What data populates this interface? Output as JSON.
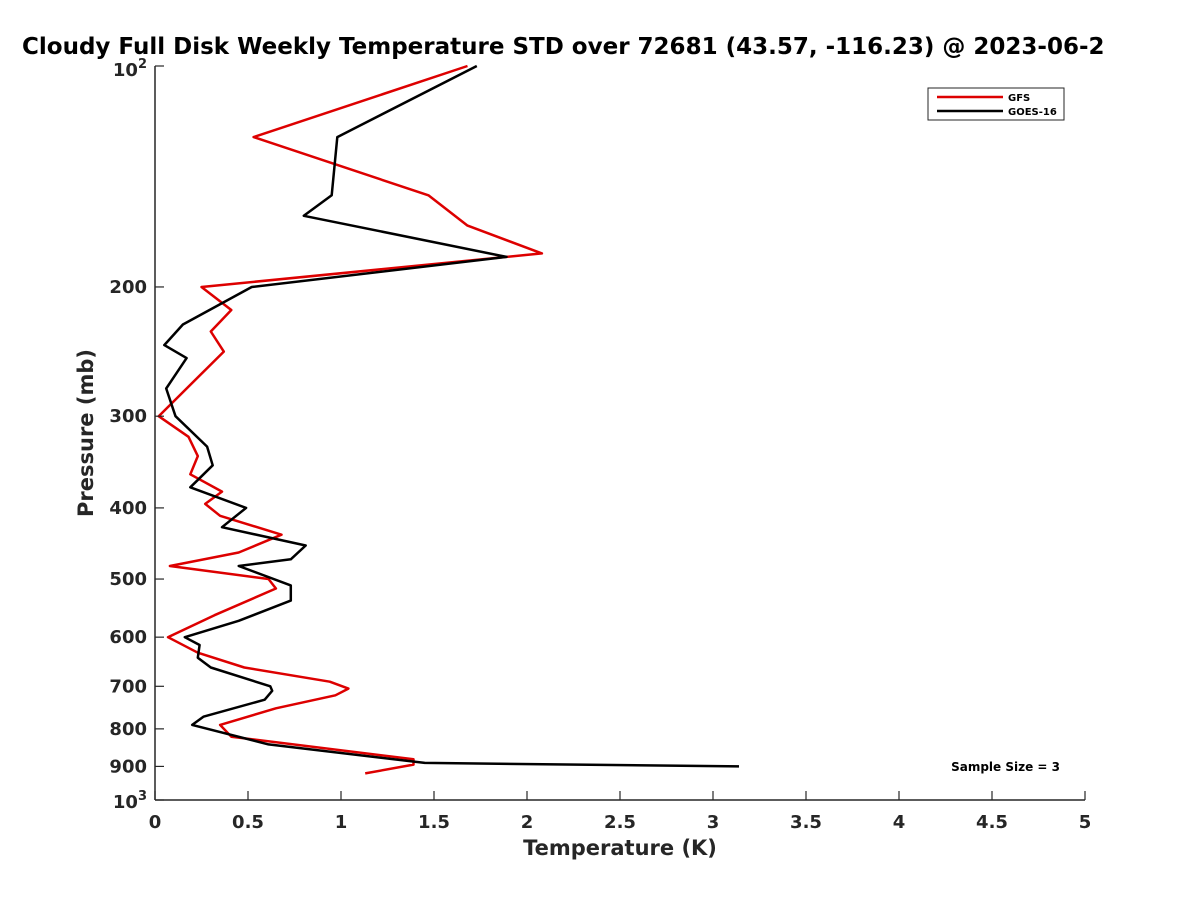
{
  "chart_data": {
    "type": "line",
    "title": "Cloudy Full Disk Weekly Temperature STD over 72681 (43.57, -116.23) @ 2023-06-2",
    "xlabel": "Temperature (K)",
    "ylabel": "Pressure (mb)",
    "xlim": [
      0,
      5
    ],
    "ylim": [
      100,
      1000
    ],
    "y_scale": "log",
    "y_reversed": true,
    "x_ticks": [
      0,
      0.5,
      1,
      1.5,
      2,
      2.5,
      3,
      3.5,
      4,
      4.5,
      5
    ],
    "x_tick_labels": [
      "0",
      "0.5",
      "1",
      "1.5",
      "2",
      "2.5",
      "3",
      "3.5",
      "4",
      "4.5",
      "5"
    ],
    "y_ticks": [
      200,
      300,
      400,
      500,
      600,
      700,
      800,
      900
    ],
    "y_tick_labels": [
      "200",
      "300",
      "400",
      "500",
      "600",
      "700",
      "800",
      "900"
    ],
    "y_tick_top": {
      "value": 100,
      "base": "10",
      "exponent": "2"
    },
    "y_tick_bottom": {
      "value": 1000,
      "base": "10",
      "exponent": "3"
    },
    "grid": false,
    "legend_position": "top-right",
    "annotation": "Sample Size = 3",
    "series": [
      {
        "name": "GFS",
        "color": "#dd0000",
        "points": [
          [
            1.68,
            100
          ],
          [
            0.53,
            125
          ],
          [
            1.47,
            150
          ],
          [
            1.68,
            165
          ],
          [
            2.08,
            180
          ],
          [
            0.25,
            200
          ],
          [
            0.41,
            215
          ],
          [
            0.3,
            230
          ],
          [
            0.37,
            245
          ],
          [
            0.02,
            300
          ],
          [
            0.18,
            320
          ],
          [
            0.23,
            340
          ],
          [
            0.19,
            360
          ],
          [
            0.36,
            380
          ],
          [
            0.27,
            395
          ],
          [
            0.35,
            410
          ],
          [
            0.68,
            435
          ],
          [
            0.45,
            460
          ],
          [
            0.08,
            480
          ],
          [
            0.61,
            500
          ],
          [
            0.65,
            515
          ],
          [
            0.32,
            560
          ],
          [
            0.07,
            600
          ],
          [
            0.23,
            630
          ],
          [
            0.48,
            660
          ],
          [
            0.94,
            690
          ],
          [
            1.04,
            705
          ],
          [
            0.97,
            720
          ],
          [
            0.65,
            750
          ],
          [
            0.35,
            790
          ],
          [
            0.41,
            820
          ],
          [
            1.39,
            880
          ],
          [
            1.39,
            895
          ],
          [
            1.13,
            920
          ]
        ]
      },
      {
        "name": "GOES-16",
        "color": "#000000",
        "points": [
          [
            1.73,
            100
          ],
          [
            0.98,
            125
          ],
          [
            0.95,
            150
          ],
          [
            0.8,
            160
          ],
          [
            1.89,
            182
          ],
          [
            0.52,
            200
          ],
          [
            0.15,
            225
          ],
          [
            0.05,
            240
          ],
          [
            0.17,
            250
          ],
          [
            0.06,
            275
          ],
          [
            0.11,
            300
          ],
          [
            0.28,
            330
          ],
          [
            0.31,
            350
          ],
          [
            0.19,
            375
          ],
          [
            0.49,
            400
          ],
          [
            0.36,
            425
          ],
          [
            0.81,
            450
          ],
          [
            0.73,
            470
          ],
          [
            0.45,
            480
          ],
          [
            0.73,
            510
          ],
          [
            0.73,
            535
          ],
          [
            0.45,
            570
          ],
          [
            0.16,
            600
          ],
          [
            0.24,
            615
          ],
          [
            0.23,
            640
          ],
          [
            0.3,
            660
          ],
          [
            0.62,
            700
          ],
          [
            0.63,
            710
          ],
          [
            0.59,
            730
          ],
          [
            0.26,
            770
          ],
          [
            0.2,
            790
          ],
          [
            0.61,
            840
          ],
          [
            1.45,
            890
          ],
          [
            3.14,
            900
          ]
        ]
      }
    ]
  }
}
